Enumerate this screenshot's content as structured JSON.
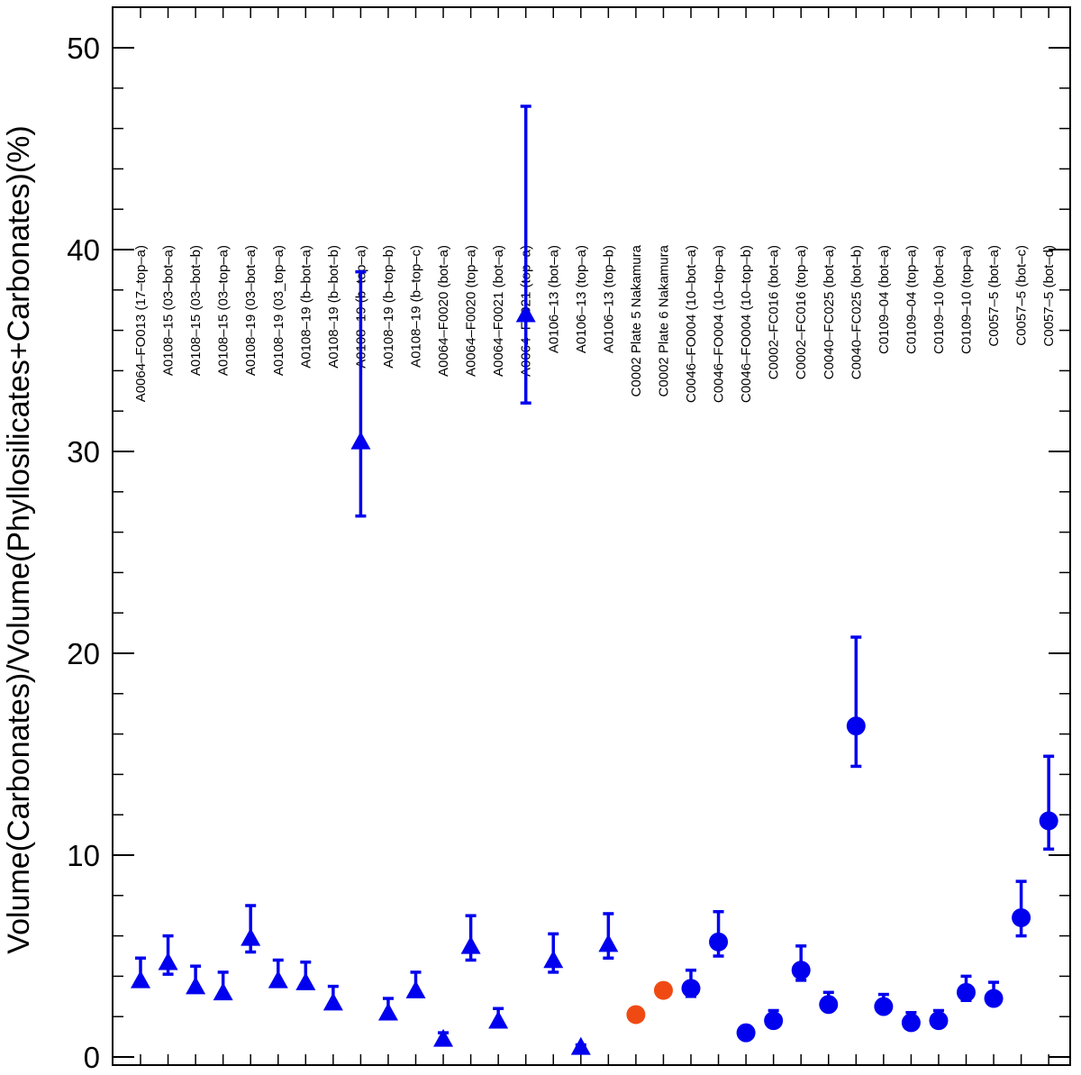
{
  "chart_data": {
    "type": "scatter",
    "title": "",
    "xlabel": "",
    "ylabel": "Volume(Carbonates)/Volume(Phyllosilicates+Carbonates)(%)",
    "ylim": [
      0,
      52
    ],
    "yticks": [
      0,
      10,
      20,
      30,
      40,
      50
    ],
    "grid": false,
    "colors": {
      "blue": "#0000ee",
      "orange": "#f04a14"
    },
    "categories": [
      "A0064–FO013 (17–top–a)",
      "A0108–15 (03–bot–a)",
      "A0108–15 (03–bot–b)",
      "A0108–15 (03–top–a)",
      "A0108–19 (03–bot–a)",
      "A0108–19 (03_top–a)",
      "A0108–19 (b–bot–a)",
      "A0108–19 (b–bot–b)",
      "A0108–19 (b–top–a)",
      "A0108–19 (b–top–b)",
      "A0108–19 (b–top–c)",
      "A0064–F0020 (bot–a)",
      "A0064–F0020 (top–a)",
      "A0064–F0021 (bot–a)",
      "A0064–F0021 (top–a)",
      "A0106–13 (bot–a)",
      "A0106–13 (top–a)",
      "A0106–13 (top–b)",
      "C0002 Plate 5 Nakamura",
      "C0002 Plate 6 Nakamura",
      "C0046–FO004 (10–bot–a)",
      "C0046–FO004 (10–top–a)",
      "C0046–FO004 (10–top–b)",
      "C0002–FC016 (bot–a)",
      "C0002–FC016 (top–a)",
      "C0040–FC025 (bot–a)",
      "C0040–FC025 (bot–b)",
      "C0109–04 (bot–a)",
      "C0109–04 (top–a)",
      "C0109–10 (bot–a)",
      "C0109–10 (top–a)",
      "C0057–5 (bot–a)",
      "C0057–5 (bot–c)",
      "C0057–5 (bot–d)"
    ],
    "points": [
      {
        "y": 3.8,
        "low": 3.5,
        "high": 4.9,
        "marker": "triangle",
        "color": "blue"
      },
      {
        "y": 4.7,
        "low": 4.1,
        "high": 6.0,
        "marker": "triangle",
        "color": "blue"
      },
      {
        "y": 3.5,
        "low": 3.3,
        "high": 4.5,
        "marker": "triangle",
        "color": "blue"
      },
      {
        "y": 3.2,
        "low": 3.0,
        "high": 4.2,
        "marker": "triangle",
        "color": "blue"
      },
      {
        "y": 5.9,
        "low": 5.2,
        "high": 7.5,
        "marker": "triangle",
        "color": "blue"
      },
      {
        "y": 3.8,
        "low": 3.5,
        "high": 4.8,
        "marker": "triangle",
        "color": "blue"
      },
      {
        "y": 3.7,
        "low": 3.4,
        "high": 4.7,
        "marker": "triangle",
        "color": "blue"
      },
      {
        "y": 2.7,
        "low": 2.5,
        "high": 3.5,
        "marker": "triangle",
        "color": "blue"
      },
      {
        "y": 30.5,
        "low": 26.8,
        "high": 38.9,
        "marker": "triangle",
        "color": "blue"
      },
      {
        "y": 2.2,
        "low": 2.0,
        "high": 2.9,
        "marker": "triangle",
        "color": "blue"
      },
      {
        "y": 3.3,
        "low": 3.0,
        "high": 4.2,
        "marker": "triangle",
        "color": "blue"
      },
      {
        "y": 0.9,
        "low": 0.8,
        "high": 1.2,
        "marker": "triangle",
        "color": "blue"
      },
      {
        "y": 5.5,
        "low": 4.8,
        "high": 7.0,
        "marker": "triangle",
        "color": "blue"
      },
      {
        "y": 1.8,
        "low": 1.6,
        "high": 2.4,
        "marker": "triangle",
        "color": "blue"
      },
      {
        "y": 36.8,
        "low": 32.4,
        "high": 47.1,
        "marker": "triangle",
        "color": "blue"
      },
      {
        "y": 4.8,
        "low": 4.2,
        "high": 6.1,
        "marker": "triangle",
        "color": "blue"
      },
      {
        "y": 0.5,
        "low": 0.4,
        "high": 0.6,
        "marker": "triangle",
        "color": "blue"
      },
      {
        "y": 5.6,
        "low": 4.9,
        "high": 7.1,
        "marker": "triangle",
        "color": "blue"
      },
      {
        "y": 2.1,
        "low": null,
        "high": null,
        "marker": "circle",
        "color": "orange"
      },
      {
        "y": 3.3,
        "low": null,
        "high": null,
        "marker": "circle",
        "color": "orange"
      },
      {
        "y": 3.4,
        "low": 3.0,
        "high": 4.3,
        "marker": "circle",
        "color": "blue"
      },
      {
        "y": 5.7,
        "low": 5.0,
        "high": 7.2,
        "marker": "circle",
        "color": "blue"
      },
      {
        "y": 1.2,
        "low": 1.0,
        "high": 1.4,
        "marker": "circle",
        "color": "blue"
      },
      {
        "y": 1.8,
        "low": 1.6,
        "high": 2.3,
        "marker": "circle",
        "color": "blue"
      },
      {
        "y": 4.3,
        "low": 3.8,
        "high": 5.5,
        "marker": "circle",
        "color": "blue"
      },
      {
        "y": 2.6,
        "low": 2.3,
        "high": 3.2,
        "marker": "circle",
        "color": "blue"
      },
      {
        "y": 16.4,
        "low": 14.4,
        "high": 20.8,
        "marker": "circle",
        "color": "blue"
      },
      {
        "y": 2.5,
        "low": 2.2,
        "high": 3.1,
        "marker": "circle",
        "color": "blue"
      },
      {
        "y": 1.7,
        "low": 1.5,
        "high": 2.2,
        "marker": "circle",
        "color": "blue"
      },
      {
        "y": 1.8,
        "low": 1.6,
        "high": 2.3,
        "marker": "circle",
        "color": "blue"
      },
      {
        "y": 3.2,
        "low": 2.8,
        "high": 4.0,
        "marker": "circle",
        "color": "blue"
      },
      {
        "y": 2.9,
        "low": 2.6,
        "high": 3.7,
        "marker": "circle",
        "color": "blue"
      },
      {
        "y": 6.9,
        "low": 6.0,
        "high": 8.7,
        "marker": "circle",
        "color": "blue"
      },
      {
        "y": 11.7,
        "low": 10.3,
        "high": 14.9,
        "marker": "circle",
        "color": "blue"
      }
    ]
  }
}
